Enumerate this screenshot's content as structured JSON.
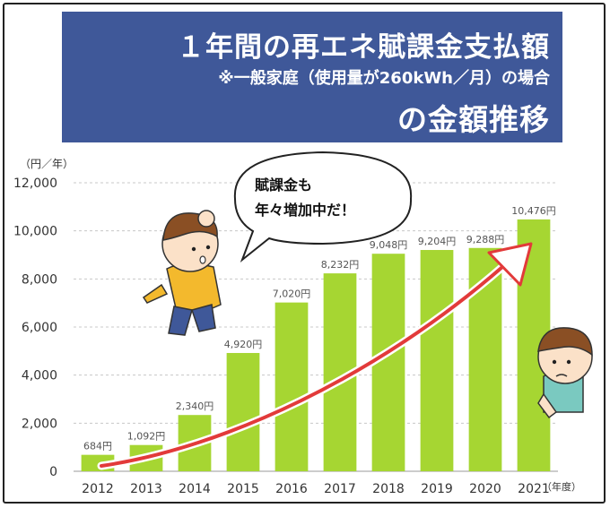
{
  "header": {
    "title_line1": "１年間の再エネ賦課金支払額",
    "title_line2": "※一般家庭（使用量が260kWh／月）の場合",
    "title_line3": "の金額推移"
  },
  "axis": {
    "unit_label": "（円／年）",
    "x_unit_label": "（年度）"
  },
  "speech_bubble": {
    "line1": "賦課金も",
    "line2": "年々増加中だ！"
  },
  "colors": {
    "banner": "#3f5899",
    "bar": "#a6d632",
    "arrow": "#e23a3a",
    "gridline": "#c8c8c8"
  },
  "chart_data": {
    "type": "bar",
    "categories": [
      "2012",
      "2013",
      "2014",
      "2015",
      "2016",
      "2017",
      "2018",
      "2019",
      "2020",
      "2021"
    ],
    "values": [
      684,
      1092,
      2340,
      4920,
      7020,
      8232,
      9048,
      9204,
      9288,
      10476
    ],
    "data_labels": [
      "684円",
      "1,092円",
      "2,340円",
      "4,920円",
      "7,020円",
      "8,232円",
      "9,048円",
      "9,204円",
      "9,288円",
      "10,476円"
    ],
    "y_ticks": [
      0,
      2000,
      4000,
      6000,
      8000,
      10000,
      12000
    ],
    "y_tick_labels": [
      "0",
      "2,000",
      "4,000",
      "6,000",
      "8,000",
      "10,000",
      "12,000"
    ],
    "ylim": [
      0,
      12000
    ],
    "grid": true,
    "title": "１年間の再エネ賦課金支払額の金額推移"
  }
}
